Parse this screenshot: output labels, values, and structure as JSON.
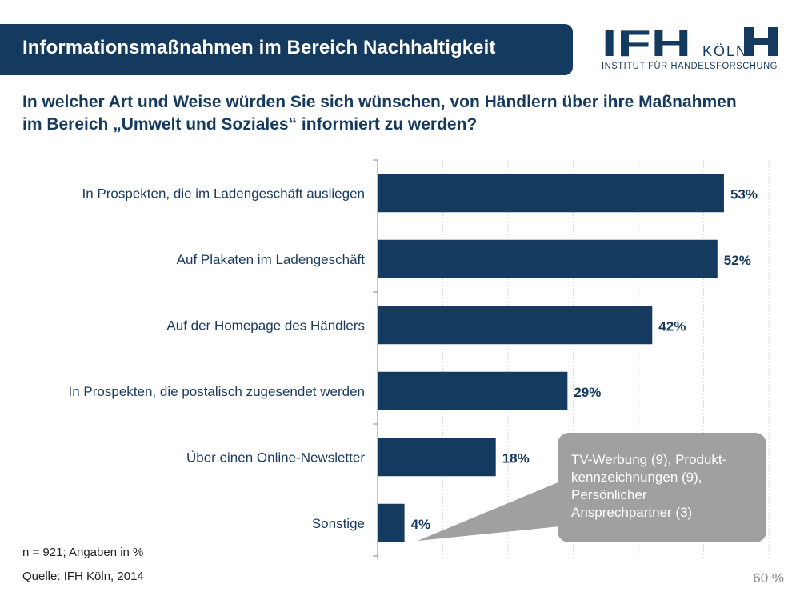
{
  "header": {
    "title": "Informationsmaßnahmen im Bereich Nachhaltigkeit"
  },
  "logo": {
    "main": "IFH",
    "city": "KÖLN",
    "subtitle": "INSTITUT FÜR HANDELSFORSCHUNG"
  },
  "question": "In welcher Art und Weise würden Sie sich wünschen, von Händlern über ihre Maßnahmen im Bereich „Umwelt und Soziales“ informiert zu werden?",
  "chart_data": {
    "type": "bar",
    "orientation": "horizontal",
    "categories": [
      "In Prospekten, die im Ladengeschäft ausliegen",
      "Auf Plakaten im Ladengeschäft",
      "Auf der Homepage des Händlers",
      "In Prospekten, die postalisch zugesendet werden",
      "Über einen Online-Newsletter",
      "Sonstige"
    ],
    "values": [
      53,
      52,
      42,
      29,
      18,
      4
    ],
    "value_labels": [
      "53%",
      "52%",
      "42%",
      "29%",
      "18%",
      "4%"
    ],
    "xlim": [
      0,
      60
    ],
    "axis_max_label": "60 %",
    "grid": true,
    "bar_color": "#153a5f"
  },
  "callout": {
    "text": "TV-Werbung (9), Produkt-kennzeichnungen (9), Persönlicher Ansprechpartner (3)",
    "lines": [
      "TV-Werbung (9), Produkt-",
      "kennzeichnungen (9),",
      "Persönlicher",
      "Ansprechpartner (3)"
    ]
  },
  "footnote": "n = 921; Angaben in %",
  "source": "Quelle: IFH Köln, 2014",
  "colors": {
    "primary": "#153a5f",
    "callout": "#a0a0a0",
    "grid": "#d9d9d9"
  }
}
